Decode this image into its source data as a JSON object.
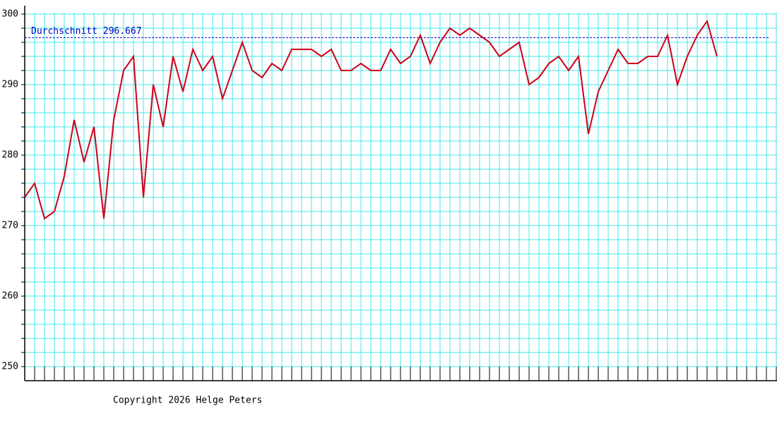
{
  "chart_data": {
    "type": "line",
    "categories": [
      null,
      null,
      null,
      null,
      null,
      null,
      null,
      null,
      null,
      null,
      null,
      null,
      null,
      null,
      null,
      null,
      null,
      null,
      null,
      null,
      null,
      null,
      null,
      null,
      null,
      null,
      null,
      null,
      null,
      null,
      null,
      null,
      null,
      null,
      null,
      null,
      null,
      null,
      null,
      null,
      null,
      null,
      null,
      null,
      null,
      null,
      null,
      null,
      null,
      null,
      null,
      null,
      null,
      null,
      null,
      null,
      null,
      null,
      null,
      null,
      null,
      null,
      null,
      null,
      null,
      null,
      null,
      null,
      null,
      null,
      null
    ],
    "series": [
      {
        "color": "#d00018",
        "values": [
          274,
          276,
          271,
          272,
          277,
          285,
          279,
          284,
          271,
          285,
          292,
          294,
          274,
          290,
          284,
          294,
          289,
          295,
          292,
          294,
          288,
          292,
          296,
          292,
          291,
          293,
          292,
          295,
          295,
          295,
          294,
          295,
          292,
          292,
          293,
          292,
          292,
          295,
          293,
          294,
          297,
          293,
          296,
          298,
          297,
          298,
          297,
          296,
          294,
          295,
          296,
          290,
          291,
          293,
          294,
          292,
          294,
          283,
          289,
          292,
          295,
          293,
          293,
          294,
          294,
          297,
          290,
          294,
          297,
          299,
          294
        ]
      }
    ],
    "average_line": {
      "value": 296.667,
      "label": "Durchschnitt 296.667",
      "color": "#0000c8"
    },
    "ylim": [
      248,
      301.2
    ],
    "yticks": [
      250,
      260,
      270,
      280,
      290,
      300
    ],
    "y_minor_ticks": [
      250,
      252,
      254,
      256,
      258,
      260,
      262,
      264,
      266,
      268,
      270,
      272,
      274,
      276,
      278,
      280,
      282,
      284,
      286,
      288,
      290,
      292,
      294,
      296,
      298,
      300
    ],
    "grid": true,
    "grid_color": "#40e8e8",
    "footer": "Copyright 2026 Helge Peters"
  }
}
